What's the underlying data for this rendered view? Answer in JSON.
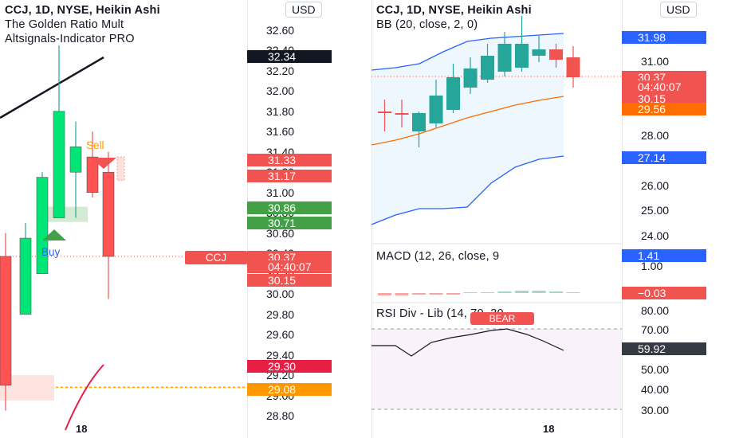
{
  "left": {
    "legend": [
      "CCJ, 1D, NYSE, Heikin Ashi",
      "The Golden Ratio Mult",
      "Altsignals-Indicator PRO"
    ],
    "currency": "USD",
    "symbol_tag": "CCJ",
    "sell_label": "Sell",
    "buy_label": "Buy",
    "date_label": "18",
    "axis_ticks": [
      "32.60",
      "32.40",
      "32.20",
      "32.00",
      "31.80",
      "31.60",
      "31.40",
      "31.20",
      "31.00",
      "30.80",
      "30.60",
      "30.40",
      "30.20",
      "30.00",
      "29.80",
      "29.60",
      "29.40",
      "29.20",
      "29.00",
      "28.80"
    ],
    "price_tags": [
      {
        "text": "32.34",
        "color": "#131722"
      },
      {
        "text": "31.33",
        "color": "#f05350"
      },
      {
        "text": "31.17",
        "color": "#f05350"
      },
      {
        "text": "30.86",
        "color": "#43a047"
      },
      {
        "text": "30.71",
        "color": "#43a047"
      },
      {
        "text": "30.37",
        "color": "#f05350"
      },
      {
        "text": "04:40:07",
        "color": "#f05350"
      },
      {
        "text": "30.15",
        "color": "#f05350"
      },
      {
        "text": "29.30",
        "color": "#e91e45"
      },
      {
        "text": "29.08",
        "color": "#ff9800"
      }
    ]
  },
  "right": {
    "legend": [
      "CCJ, 1D, NYSE, Heikin Ashi",
      "BB (20, close, 2, 0)"
    ],
    "currency": "USD",
    "date_label": "18",
    "main_ticks": [
      "31.00",
      "30.00",
      "28.00",
      "26.00",
      "25.00",
      "24.00"
    ],
    "price_tags": [
      {
        "text": "31.98",
        "color": "#2962ff"
      },
      {
        "text": "30.37",
        "color": "#f05350"
      },
      {
        "text": "04:40:07",
        "color": "#f05350"
      },
      {
        "text": "30.15",
        "color": "#f05350"
      },
      {
        "text": "29.56",
        "color": "#ff6d00"
      },
      {
        "text": "27.14",
        "color": "#2962ff"
      }
    ],
    "macd": {
      "label": "MACD (12, 26, close, 9",
      "tick": "1.00",
      "value": "1.41",
      "hist_value": "−0.03"
    },
    "rsi": {
      "label": "RSI Div - Lib (14, 70, 30",
      "bear": "BEAR",
      "ticks": [
        "80.00",
        "70.00",
        "60.00",
        "50.00",
        "40.00",
        "30.00"
      ],
      "value": "59.92"
    }
  },
  "chart_data": [
    {
      "type": "candlestick",
      "title": "CCJ, 1D, NYSE, Heikin Ashi",
      "ylim": [
        28.8,
        32.6
      ],
      "candles": [
        {
          "open": 30.37,
          "high": 30.6,
          "low": 28.85,
          "close": 29.1
        },
        {
          "open": 29.8,
          "high": 30.7,
          "low": 29.8,
          "close": 30.55
        },
        {
          "open": 30.2,
          "high": 31.2,
          "low": 30.2,
          "close": 31.15
        },
        {
          "open": 30.75,
          "high": 32.45,
          "low": 30.75,
          "close": 31.8
        },
        {
          "open": 31.2,
          "high": 31.7,
          "low": 30.75,
          "close": 31.45
        },
        {
          "open": 31.35,
          "high": 31.6,
          "low": 30.95,
          "close": 31.0
        },
        {
          "open": 31.2,
          "high": 31.4,
          "low": 29.95,
          "close": 30.37
        }
      ],
      "levels": {
        "last": 30.37,
        "sell_stop": 31.33,
        "sell_zone": 31.17,
        "buy_zone_top": 30.86,
        "buy_zone_bottom": 30.71,
        "support": 29.3,
        "trigger": 29.08,
        "trend": 32.34
      },
      "signals": [
        {
          "type": "Sell",
          "price": 31.33
        },
        {
          "type": "Buy",
          "price": 30.5
        }
      ]
    },
    {
      "type": "candlestick",
      "title": "CCJ, 1D, NYSE, Heikin Ashi",
      "ylim": [
        23.5,
        32.5
      ],
      "candles": [
        {
          "open": 28.8,
          "high": 29.1,
          "low": 28.2,
          "close": 28.9
        },
        {
          "open": 28.9,
          "high": 29.3,
          "low": 28.4,
          "close": 28.9
        },
        {
          "open": 28.4,
          "high": 29.2,
          "low": 27.7,
          "close": 28.9
        },
        {
          "open": 29.0,
          "high": 30.7,
          "low": 28.8,
          "close": 29.8
        },
        {
          "open": 29.2,
          "high": 30.5,
          "low": 29.0,
          "close": 30.3
        },
        {
          "open": 29.5,
          "high": 30.8,
          "low": 29.4,
          "close": 30.6
        },
        {
          "open": 30.0,
          "high": 31.3,
          "low": 29.8,
          "close": 31.0
        },
        {
          "open": 30.5,
          "high": 31.6,
          "low": 30.3,
          "close": 31.3
        },
        {
          "open": 31.0,
          "high": 32.2,
          "low": 30.6,
          "close": 31.8
        },
        {
          "open": 31.3,
          "high": 31.8,
          "low": 30.8,
          "close": 31.4
        },
        {
          "open": 31.4,
          "high": 31.6,
          "low": 30.4,
          "close": 30.9
        },
        {
          "open": 31.1,
          "high": 31.3,
          "low": 29.9,
          "close": 30.37
        }
      ],
      "bollinger": {
        "upper": 31.98,
        "basis": 29.56,
        "lower": 27.14
      },
      "macd": {
        "value": 1.41,
        "histogram": -0.03
      },
      "rsi": {
        "value": 59.92,
        "ylim": [
          30,
          80
        ],
        "upper": 70,
        "lower": 30
      }
    }
  ]
}
